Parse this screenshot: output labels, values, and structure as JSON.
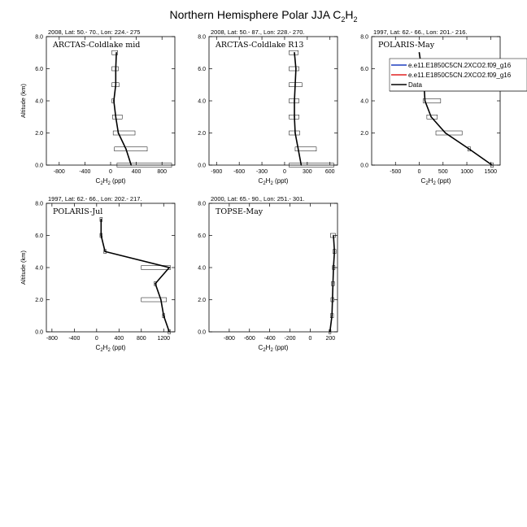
{
  "figure": {
    "title_main": "Northern Hemisphere Polar JJA C",
    "title_sub1": "2",
    "title_mid": "H",
    "title_sub2": "2"
  },
  "legend": {
    "entries": [
      {
        "label": "e.e11.E1850C5CN.2XCO2.f09_g16",
        "color": "#1f3fbf"
      },
      {
        "label": "e.e11.E1850C5CN.2XCO2.f09_g16",
        "color": "#e02020"
      },
      {
        "label": "Data",
        "color": "#000000"
      }
    ]
  },
  "chart_data": [
    {
      "type": "line",
      "header": "2008, Lat:  50.- 70., Lon: 224.- 275",
      "campaign": "ARCTAS-Coldlake mid",
      "xlabel": "C2H2 (ppt)",
      "ylabel": "Altitude (km)",
      "xlim": [
        -1000,
        1000
      ],
      "xticks": [
        -800,
        -400,
        0,
        400,
        800
      ],
      "ylim": [
        0,
        8
      ],
      "yticks": [
        0.0,
        2.0,
        4.0,
        6.0,
        8.0
      ],
      "series": [
        {
          "name": "Data",
          "x": [
            320,
            240,
            120,
            80,
            50,
            80,
            80,
            90
          ],
          "y": [
            0.0,
            1.0,
            2.0,
            3.0,
            4.0,
            5.0,
            6.0,
            7.0
          ],
          "err_lo": [
            100,
            60,
            40,
            30,
            20,
            20,
            20,
            20
          ],
          "err_hi": [
            950,
            570,
            380,
            180,
            60,
            130,
            120,
            110
          ]
        }
      ]
    },
    {
      "type": "line",
      "header": "2008, Lat:  50.- 87., Lon: 228.- 270.",
      "campaign": "ARCTAS-Coldlake R13",
      "xlabel": "C2H2 (ppt)",
      "ylabel": "Altitude (km)",
      "xlim": [
        -1000,
        700
      ],
      "xticks": [
        -900,
        -600,
        -300,
        0,
        300,
        600
      ],
      "ylim": [
        0,
        8
      ],
      "yticks": [
        0.0,
        2.0,
        4.0,
        6.0,
        8.0
      ],
      "series": [
        {
          "name": "Data",
          "x": [
            220,
            180,
            140,
            130,
            130,
            140,
            150,
            130
          ],
          "y": [
            0.0,
            1.0,
            2.0,
            3.0,
            4.0,
            5.0,
            6.0,
            7.0
          ],
          "err_lo": [
            60,
            140,
            60,
            60,
            60,
            60,
            60,
            60
          ],
          "err_hi": [
            650,
            420,
            200,
            190,
            190,
            230,
            190,
            180
          ]
        }
      ]
    },
    {
      "type": "line",
      "header": "1997, Lat: 62.- 66., Lon: 201.- 216.",
      "campaign": "POLARIS-May",
      "xlabel": "C2H2 (ppt)",
      "ylabel": "Altitude (km)",
      "xlim": [
        -1000,
        1700
      ],
      "xticks": [
        -500,
        0,
        500,
        1000,
        1500
      ],
      "ylim": [
        0,
        8
      ],
      "yticks": [
        0.0,
        2.0,
        4.0,
        6.0,
        8.0
      ],
      "series": [
        {
          "name": "Data",
          "x": [
            1530,
            1050,
            550,
            250,
            120,
            100,
            0
          ],
          "y": [
            0.0,
            1.0,
            2.0,
            3.0,
            4.0,
            5.0,
            7.0
          ],
          "err_lo": [
            1500,
            1020,
            350,
            160,
            80,
            80,
            0
          ],
          "err_hi": [
            1560,
            1080,
            900,
            380,
            450,
            120,
            0
          ]
        }
      ]
    },
    {
      "type": "line",
      "header": "1997, Lat: 62.- 66., Lon: 202.- 217.",
      "campaign": "POLARIS-Jul",
      "xlabel": "C2H2 (ppt)",
      "ylabel": "Altitude (km)",
      "xlim": [
        -900,
        1400
      ],
      "xticks": [
        -800,
        -400,
        0,
        400,
        800,
        1200
      ],
      "ylim": [
        0,
        8
      ],
      "yticks": [
        0.0,
        2.0,
        4.0,
        6.0,
        8.0
      ],
      "series": [
        {
          "name": "Data",
          "x": [
            1300,
            1200,
            1150,
            1050,
            1300,
            150,
            80,
            80
          ],
          "y": [
            0.0,
            1.0,
            2.0,
            3.0,
            4.0,
            5.0,
            6.0,
            7.0
          ],
          "err_lo": [
            1280,
            1180,
            800,
            1030,
            800,
            130,
            60,
            60
          ],
          "err_hi": [
            1320,
            1220,
            1250,
            1070,
            1320,
            170,
            100,
            100
          ]
        }
      ]
    },
    {
      "type": "line",
      "header": "2000, Lat: 65.- 90., Lon: 251.- 301.",
      "campaign": "TOPSE-May",
      "xlabel": "C2H2 (ppt)",
      "ylabel": "Altitude (km)",
      "xlim": [
        -1000,
        270
      ],
      "xticks": [
        -800,
        -600,
        -400,
        -200,
        0,
        200
      ],
      "ylim": [
        0,
        8
      ],
      "yticks": [
        0.0,
        2.0,
        4.0,
        6.0,
        8.0
      ],
      "series": [
        {
          "name": "Data",
          "x": [
            195,
            215,
            220,
            225,
            230,
            240,
            230
          ],
          "y": [
            0.0,
            1.0,
            2.0,
            3.0,
            4.0,
            5.0,
            6.0
          ],
          "err_lo": [
            185,
            200,
            205,
            210,
            220,
            225,
            200
          ],
          "err_hi": [
            205,
            230,
            235,
            240,
            245,
            255,
            250
          ]
        }
      ]
    }
  ]
}
